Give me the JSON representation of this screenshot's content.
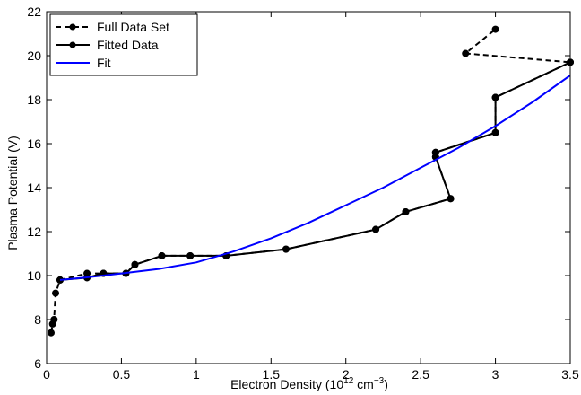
{
  "chart_data": {
    "type": "line",
    "title": "",
    "xlabel": {
      "prefix": "Electron Density (10",
      "exp1": "12",
      "mid": " cm",
      "exp2": "−3",
      "suffix": ")"
    },
    "ylabel": "Plasma Potential (V)",
    "xlim": [
      0,
      3.5
    ],
    "ylim": [
      6,
      22
    ],
    "xticks": [
      0,
      0.5,
      1,
      1.5,
      2,
      2.5,
      3,
      3.5
    ],
    "yticks": [
      6,
      8,
      10,
      12,
      14,
      16,
      18,
      20,
      22
    ],
    "xtick_labels": [
      "0",
      "0.5",
      "1",
      "1.5",
      "2",
      "2.5",
      "3",
      "3.5"
    ],
    "ytick_labels": [
      "6",
      "8",
      "10",
      "12",
      "14",
      "16",
      "18",
      "20",
      "22"
    ],
    "grid": false,
    "legend_position": "top-left",
    "series": [
      {
        "name": "Full Data Set",
        "style": "dashed",
        "marker": "circle",
        "color": "#000000",
        "x": [
          0.03,
          0.04,
          0.05,
          0.06,
          0.09,
          0.27,
          0.38,
          0.53,
          0.59,
          0.77,
          0.96,
          1.2,
          1.6,
          2.2,
          2.4,
          2.7,
          2.6,
          2.6,
          3.0,
          3.0,
          3.5,
          2.8,
          3.0
        ],
        "y": [
          7.4,
          7.8,
          8.0,
          9.2,
          9.8,
          10.1,
          10.1,
          10.1,
          10.5,
          10.9,
          10.9,
          10.9,
          11.2,
          12.1,
          12.9,
          13.5,
          15.4,
          15.6,
          16.5,
          18.1,
          19.7,
          20.1,
          21.2
        ]
      },
      {
        "name": "Fitted Data",
        "style": "solid",
        "marker": "circle",
        "color": "#000000",
        "x": [
          0.09,
          0.27,
          0.38,
          0.53,
          0.59,
          0.77,
          0.96,
          1.2,
          1.6,
          2.2,
          2.4,
          2.7,
          2.6,
          2.6,
          3.0,
          3.0,
          3.5
        ],
        "y": [
          9.8,
          9.9,
          10.1,
          10.1,
          10.5,
          10.9,
          10.9,
          10.9,
          11.2,
          12.1,
          12.9,
          13.5,
          15.4,
          15.6,
          16.5,
          18.1,
          19.7
        ]
      },
      {
        "name": "Fit",
        "style": "solid",
        "marker": "none",
        "color": "#0000ff",
        "x": [
          0.09,
          0.25,
          0.5,
          0.75,
          1.0,
          1.25,
          1.5,
          1.75,
          2.0,
          2.25,
          2.5,
          2.75,
          3.0,
          3.25,
          3.5
        ],
        "y": [
          9.8,
          9.9,
          10.1,
          10.3,
          10.6,
          11.1,
          11.7,
          12.4,
          13.2,
          14.0,
          14.9,
          15.8,
          16.8,
          17.9,
          19.1
        ]
      }
    ]
  }
}
